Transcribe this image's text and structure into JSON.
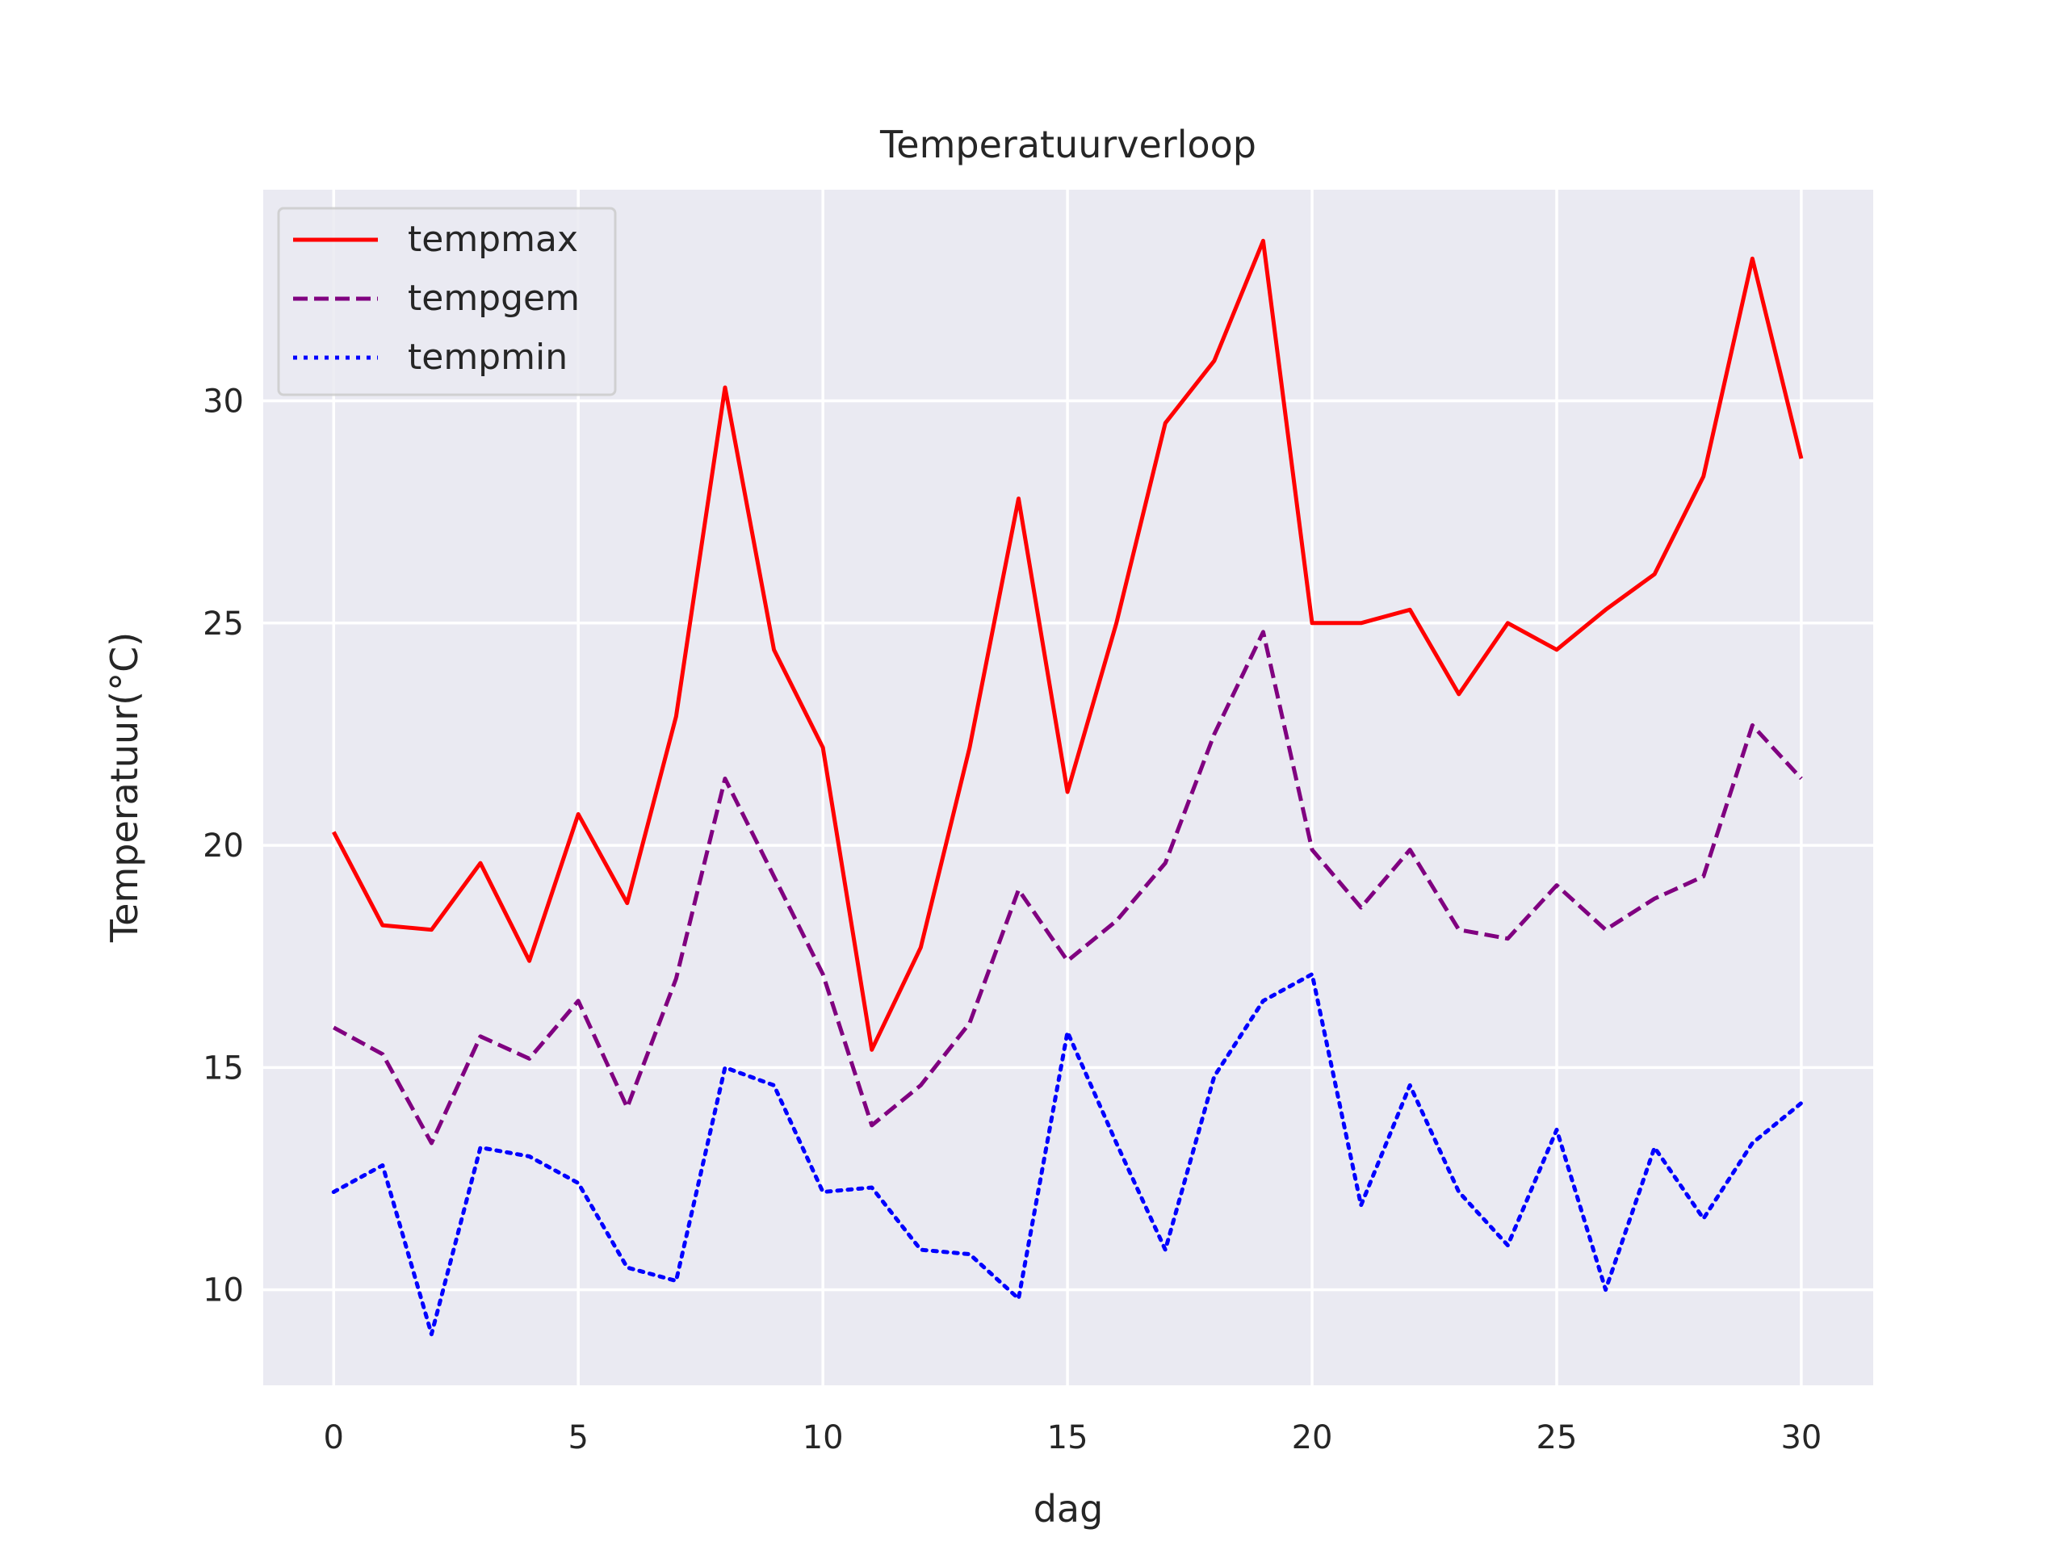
{
  "chart_data": {
    "type": "line",
    "title": "Temperatuurverloop",
    "xlabel": "dag",
    "ylabel": "Temperatuur(°C)",
    "xlim": [
      -1.44,
      31.47
    ],
    "ylim": [
      7.85,
      34.75
    ],
    "xticks": [
      0,
      5,
      10,
      15,
      20,
      25,
      30
    ],
    "yticks": [
      10,
      15,
      20,
      25,
      30
    ],
    "grid": true,
    "legend_position": "top-left",
    "x": [
      0,
      1,
      2,
      3,
      4,
      5,
      6,
      7,
      8,
      9,
      10,
      11,
      12,
      13,
      14,
      15,
      16,
      17,
      18,
      19,
      20,
      21,
      22,
      23,
      24,
      25,
      26,
      27,
      28,
      29,
      30
    ],
    "series": [
      {
        "name": "tempmax",
        "color": "#ff0000",
        "style": "solid",
        "values": [
          20.3,
          18.2,
          18.1,
          19.6,
          17.4,
          20.7,
          18.7,
          22.9,
          30.3,
          24.4,
          22.2,
          15.4,
          17.7,
          22.2,
          27.8,
          21.2,
          25.0,
          29.5,
          30.9,
          33.6,
          25.0,
          25.0,
          25.3,
          23.4,
          25.0,
          24.4,
          25.3,
          26.1,
          28.3,
          33.2,
          28.7
        ]
      },
      {
        "name": "tempgem",
        "color": "#800080",
        "style": "dashed",
        "values": [
          15.9,
          15.3,
          13.3,
          15.7,
          15.2,
          16.5,
          14.1,
          17.0,
          21.5,
          19.3,
          17.1,
          13.7,
          14.6,
          16.0,
          19.0,
          17.4,
          18.3,
          19.6,
          22.5,
          24.8,
          19.9,
          18.6,
          19.9,
          18.1,
          17.9,
          19.1,
          18.1,
          18.8,
          19.3,
          22.7,
          21.5
        ]
      },
      {
        "name": "tempmin",
        "color": "#0000ff",
        "style": "dotted",
        "values": [
          12.2,
          12.8,
          9.0,
          13.2,
          13.0,
          12.4,
          10.5,
          10.2,
          15.0,
          14.6,
          12.2,
          12.3,
          10.9,
          10.8,
          9.8,
          15.8,
          13.3,
          10.9,
          14.8,
          16.5,
          17.1,
          11.9,
          14.6,
          12.2,
          11.0,
          13.6,
          10.0,
          13.2,
          11.6,
          13.3,
          14.2
        ]
      }
    ]
  }
}
